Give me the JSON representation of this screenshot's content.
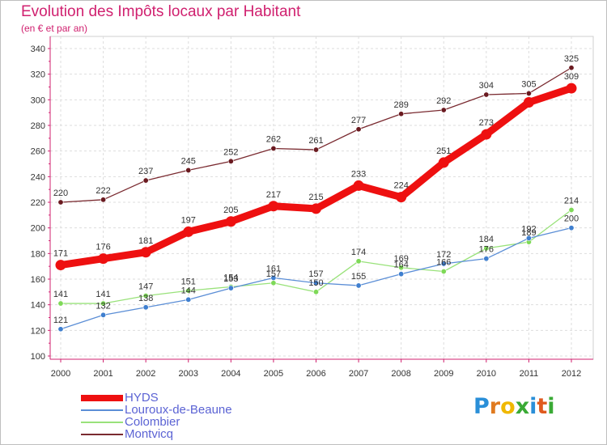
{
  "title": "Evolution des Impôts locaux par Habitant",
  "subtitle": "(en € et par an)",
  "colors": {
    "title": "#d0206f",
    "legend_text": "#5b63d4",
    "axis": "#d0206f"
  },
  "chart_data": {
    "type": "line",
    "title": "Evolution des Impôts locaux par Habitant",
    "subtitle": "(en € et par an)",
    "xlabel": "",
    "ylabel": "",
    "ylim": [
      100,
      340
    ],
    "yticks": [
      100,
      120,
      140,
      160,
      180,
      200,
      220,
      240,
      260,
      280,
      300,
      320,
      340
    ],
    "grid": true,
    "legend_position": "bottom-left",
    "x": [
      "2000",
      "2001",
      "2002",
      "2003",
      "2004",
      "2005",
      "2006",
      "2007",
      "2008",
      "2009",
      "2010",
      "2011",
      "2012"
    ],
    "series": [
      {
        "name": "HYDS",
        "color": "#ee1010",
        "marker": "#ee1010",
        "values": [
          171,
          176,
          181,
          197,
          205,
          217,
          215,
          233,
          224,
          251,
          273,
          298,
          309
        ],
        "labels": [
          "171",
          "176",
          "181",
          "197",
          "205",
          "217",
          "215",
          "233",
          "224",
          "251",
          "273",
          "",
          "309"
        ]
      },
      {
        "name": "Louroux-de-Beaune",
        "color": "#5b8ed6",
        "marker": "#3f7fcf",
        "values": [
          121,
          132,
          138,
          144,
          153,
          161,
          157,
          155,
          164,
          172,
          176,
          192,
          200
        ],
        "labels": [
          "121",
          "132",
          "138",
          "144",
          "153",
          "161",
          "157",
          "155",
          "164",
          "172",
          "176",
          "192",
          "200"
        ]
      },
      {
        "name": "Colombier",
        "color": "#99e27a",
        "marker": "#7ed957",
        "values": [
          141,
          141,
          147,
          151,
          154,
          157,
          150,
          174,
          169,
          166,
          184,
          189,
          214
        ],
        "labels": [
          "141",
          "141",
          "147",
          "151",
          "154",
          "157",
          "150",
          "174",
          "169",
          "166",
          "184",
          "189",
          "214"
        ]
      },
      {
        "name": "Montvicq",
        "color": "#7a2a30",
        "marker": "#6a1a20",
        "values": [
          220,
          222,
          237,
          245,
          252,
          262,
          261,
          277,
          289,
          292,
          304,
          305,
          325
        ],
        "labels": [
          "220",
          "222",
          "237",
          "245",
          "252",
          "262",
          "261",
          "277",
          "289",
          "292",
          "304",
          "305",
          "325"
        ]
      }
    ]
  },
  "logo": {
    "letters": [
      "P",
      "r",
      "o",
      "x",
      "i",
      "t",
      "i"
    ],
    "colors": [
      "#2a8fd8",
      "#e07a1f",
      "#f0b800",
      "#3aaa35",
      "#2a8fd8",
      "#e05a1f",
      "#3aaa35"
    ]
  }
}
